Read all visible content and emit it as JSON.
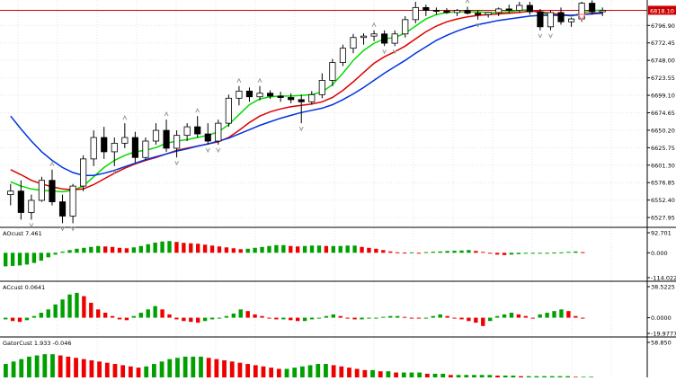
{
  "colors": {
    "background": "#ffffff",
    "grid": "#e6e6e6",
    "candle": "#000000",
    "ma_green": "#00dd00",
    "ma_red": "#dd0000",
    "ma_blue": "#0033dd",
    "hist_up": "#00a000",
    "hist_down": "#ee0000",
    "price_line": "#cc0000",
    "price_tag_bg": "#cc0000",
    "price_tag_text": "#ffffff",
    "fractal_arrow": "#999999",
    "signal_arrow": "#ff6666"
  },
  "chart_data": [
    {
      "type": "candlestick",
      "title": "",
      "price_tag": "6818.10",
      "y_ticks": [
        "6796.90",
        "6772.45",
        "6748.00",
        "6723.55",
        "6699.10",
        "6674.65",
        "6650.20",
        "6625.75",
        "6601.30",
        "6576.85",
        "6552.40",
        "6527.95"
      ],
      "ylim": [
        6518,
        6830
      ],
      "current_price": 6818.1,
      "grid": true,
      "candles": [
        [
          6560,
          6575,
          6545,
          6565
        ],
        [
          6565,
          6580,
          6525,
          6535
        ],
        [
          6535,
          6560,
          6525,
          6552
        ],
        [
          6552,
          6585,
          6550,
          6580
        ],
        [
          6580,
          6595,
          6545,
          6550
        ],
        [
          6550,
          6560,
          6520,
          6530
        ],
        [
          6530,
          6575,
          6520,
          6572
        ],
        [
          6572,
          6615,
          6565,
          6610
        ],
        [
          6610,
          6650,
          6600,
          6640
        ],
        [
          6640,
          6655,
          6610,
          6620
        ],
        [
          6620,
          6640,
          6600,
          6632
        ],
        [
          6632,
          6660,
          6625,
          6640
        ],
        [
          6640,
          6648,
          6605,
          6612
        ],
        [
          6612,
          6640,
          6608,
          6635
        ],
        [
          6635,
          6660,
          6630,
          6650
        ],
        [
          6650,
          6665,
          6620,
          6625
        ],
        [
          6625,
          6650,
          6612,
          6643
        ],
        [
          6643,
          6660,
          6635,
          6655
        ],
        [
          6655,
          6670,
          6640,
          6645
        ],
        [
          6645,
          6660,
          6630,
          6635
        ],
        [
          6635,
          6665,
          6630,
          6660
        ],
        [
          6660,
          6700,
          6655,
          6695
        ],
        [
          6695,
          6712,
          6685,
          6705
        ],
        [
          6705,
          6710,
          6690,
          6697
        ],
        [
          6697,
          6712,
          6692,
          6702
        ],
        [
          6702,
          6706,
          6694,
          6698
        ],
        [
          6698,
          6704,
          6690,
          6696
        ],
        [
          6696,
          6702,
          6688,
          6693
        ],
        [
          6693,
          6700,
          6660,
          6690
        ],
        [
          6690,
          6705,
          6686,
          6700
        ],
        [
          6700,
          6730,
          6695,
          6720
        ],
        [
          6720,
          6750,
          6712,
          6745
        ],
        [
          6745,
          6770,
          6740,
          6765
        ],
        [
          6765,
          6785,
          6758,
          6780
        ],
        [
          6780,
          6786,
          6770,
          6782
        ],
        [
          6782,
          6790,
          6775,
          6785
        ],
        [
          6785,
          6790,
          6768,
          6772
        ],
        [
          6772,
          6790,
          6768,
          6785
        ],
        [
          6785,
          6810,
          6780,
          6805
        ],
        [
          6805,
          6830,
          6800,
          6822
        ],
        [
          6822,
          6826,
          6810,
          6818
        ],
        [
          6818,
          6822,
          6812,
          6817
        ],
        [
          6817,
          6821,
          6813,
          6815
        ],
        [
          6815,
          6820,
          6810,
          6818
        ],
        [
          6818,
          6823,
          6812,
          6814
        ],
        [
          6814,
          6818,
          6805,
          6812
        ],
        [
          6812,
          6816,
          6808,
          6815
        ],
        [
          6815,
          6822,
          6810,
          6820
        ],
        [
          6820,
          6826,
          6814,
          6818
        ],
        [
          6818,
          6830,
          6815,
          6825
        ],
        [
          6825,
          6830,
          6812,
          6816
        ],
        [
          6816,
          6820,
          6790,
          6795
        ],
        [
          6795,
          6818,
          6790,
          6815
        ],
        [
          6815,
          6822,
          6798,
          6802
        ],
        [
          6802,
          6808,
          6795,
          6806
        ],
        [
          6806,
          6830,
          6802,
          6828
        ],
        [
          6828,
          6832,
          6812,
          6816
        ],
        [
          6816,
          6822,
          6810,
          6818
        ]
      ],
      "series": [
        {
          "name": "",
          "color_key": "ma_green",
          "values": [
            6578,
            6572,
            6568,
            6566,
            6565,
            6564,
            6566,
            6572,
            6585,
            6598,
            6608,
            6615,
            6620,
            6622,
            6626,
            6632,
            6635,
            6637,
            6640,
            6643,
            6648,
            6658,
            6672,
            6686,
            6694,
            6697,
            6698,
            6698,
            6699,
            6700,
            6704,
            6714,
            6730,
            6748,
            6762,
            6772,
            6778,
            6780,
            6786,
            6796,
            6806,
            6812,
            6815,
            6816,
            6816,
            6816,
            6815,
            6815,
            6816,
            6818,
            6819,
            6814,
            6812,
            6812,
            6810,
            6814,
            6818,
            6818
          ]
        },
        {
          "name": "",
          "color_key": "ma_red",
          "values": [
            6595,
            6588,
            6580,
            6575,
            6571,
            6568,
            6567,
            6568,
            6574,
            6582,
            6590,
            6597,
            6603,
            6608,
            6612,
            6617,
            6622,
            6625,
            6628,
            6631,
            6634,
            6640,
            6650,
            6661,
            6670,
            6676,
            6680,
            6683,
            6685,
            6687,
            6690,
            6696,
            6706,
            6718,
            6731,
            6744,
            6753,
            6760,
            6768,
            6778,
            6788,
            6796,
            6802,
            6806,
            6809,
            6811,
            6812,
            6813,
            6814,
            6815,
            6817,
            6816,
            6814,
            6812,
            6811,
            6812,
            6814,
            6815
          ]
        },
        {
          "name": "",
          "color_key": "ma_blue",
          "values": [
            6670,
            6652,
            6635,
            6620,
            6608,
            6598,
            6591,
            6587,
            6587,
            6590,
            6594,
            6599,
            6604,
            6609,
            6613,
            6617,
            6621,
            6624,
            6628,
            6631,
            6635,
            6639,
            6645,
            6651,
            6657,
            6662,
            6667,
            6671,
            6675,
            6678,
            6681,
            6686,
            6693,
            6701,
            6710,
            6720,
            6730,
            6739,
            6748,
            6758,
            6767,
            6776,
            6783,
            6789,
            6794,
            6798,
            6801,
            6804,
            6806,
            6808,
            6810,
            6811,
            6811,
            6811,
            6811,
            6812,
            6813,
            6814
          ]
        }
      ]
    },
    {
      "type": "bar",
      "title": "AOcust 7.461",
      "y_ticks": [
        "92.701",
        "0.000",
        "-114.022"
      ],
      "ylim": [
        -114.022,
        92.701
      ],
      "values": [
        -60,
        -58,
        -56,
        -52,
        -45,
        -35,
        -20,
        -8,
        5,
        12,
        18,
        22,
        26,
        30,
        28,
        26,
        22,
        20,
        24,
        30,
        38,
        45,
        50,
        52,
        48,
        44,
        42,
        40,
        36,
        32,
        28,
        24,
        20,
        16,
        18,
        22,
        26,
        30,
        34,
        34,
        30,
        28,
        30,
        32,
        32,
        30,
        30,
        30,
        32,
        32,
        26,
        22,
        18,
        12,
        6,
        2,
        1,
        2,
        0,
        3,
        5,
        6,
        8,
        9,
        10,
        12,
        8,
        4,
        -4,
        -8,
        -10,
        -8,
        -6,
        -4,
        -4,
        -2,
        0,
        1,
        2,
        4,
        6,
        3
      ]
    },
    {
      "type": "bar",
      "title": "ACcust 0.0641",
      "y_ticks": [
        "38.5225",
        "0.0000",
        "-19.9777"
      ],
      "ylim": [
        -19.9777,
        38.5225
      ],
      "values": [
        -2,
        -4,
        -5,
        -3,
        2,
        6,
        10,
        16,
        22,
        28,
        30,
        26,
        18,
        10,
        6,
        2,
        -2,
        -3,
        2,
        6,
        10,
        14,
        10,
        4,
        -2,
        -4,
        -5,
        -6,
        -4,
        -2,
        0,
        2,
        5,
        10,
        8,
        4,
        2,
        0,
        -2,
        -2,
        -3,
        -4,
        -4,
        -2,
        0,
        2,
        4,
        2,
        0,
        -2,
        -2,
        -1,
        0,
        1,
        2,
        2,
        1,
        0,
        -1,
        -1,
        2,
        4,
        2,
        0,
        -2,
        -4,
        -6,
        -10,
        -4,
        2,
        4,
        6,
        4,
        2,
        0,
        4,
        6,
        8,
        10,
        8,
        2,
        0
      ]
    },
    {
      "type": "bar",
      "title": "GatorCust 1.933 -0.046",
      "y_ticks": [
        "58.850"
      ],
      "ylim": [
        0,
        58.85
      ],
      "values": [
        22,
        26,
        30,
        34,
        36,
        38,
        38,
        36,
        34,
        32,
        30,
        28,
        26,
        24,
        22,
        20,
        18,
        16,
        18,
        22,
        26,
        30,
        32,
        34,
        34,
        34,
        32,
        30,
        28,
        26,
        24,
        22,
        20,
        18,
        16,
        14,
        14,
        16,
        18,
        20,
        22,
        22,
        20,
        18,
        16,
        14,
        12,
        12,
        10,
        10,
        8,
        8,
        8,
        8,
        6,
        6,
        6,
        4,
        4,
        4,
        4,
        4,
        4,
        3,
        3,
        3,
        2,
        2,
        2,
        2,
        2,
        2,
        2,
        1,
        1,
        1
      ]
    }
  ]
}
